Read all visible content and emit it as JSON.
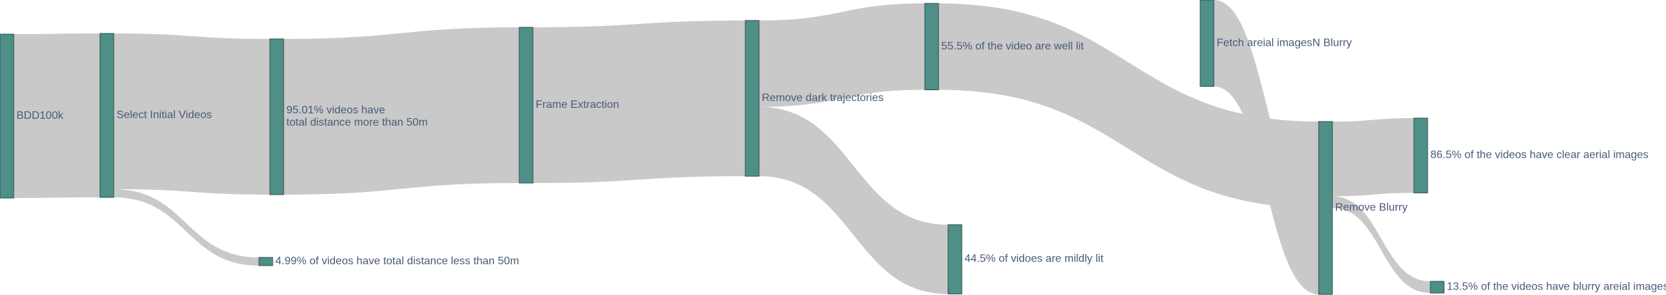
{
  "chart_data": {
    "type": "sankey",
    "title": "",
    "nodes": [
      {
        "id": "bdd",
        "label": [
          "BDD100k"
        ]
      },
      {
        "id": "select",
        "label": [
          "Select Initial Videos"
        ]
      },
      {
        "id": "dist_more",
        "label": [
          "95.01% videos have",
          "total distance more than 50m"
        ]
      },
      {
        "id": "dist_less",
        "label": [
          "4.99% of videos have total distance less than 50m"
        ]
      },
      {
        "id": "frame",
        "label": [
          "Frame Extraction"
        ]
      },
      {
        "id": "dark",
        "label": [
          "Remove dark trajectories"
        ]
      },
      {
        "id": "well_lit",
        "label": [
          "55.5% of the video are well lit"
        ]
      },
      {
        "id": "mild",
        "label": [
          "44.5% of vidoes are mildly lit"
        ]
      },
      {
        "id": "fetch",
        "label": [
          "Fetch areial imagesN Blurry"
        ]
      },
      {
        "id": "blurry",
        "label": [
          "Remove Blurry"
        ]
      },
      {
        "id": "clear",
        "label": [
          "86.5% of the videos have clear aerial images"
        ]
      },
      {
        "id": "blur_imgs",
        "label": [
          "13.5% of the videos have blurry areial images"
        ]
      }
    ],
    "links": [
      {
        "source": "bdd",
        "target": "select",
        "value": 100
      },
      {
        "source": "select",
        "target": "dist_more",
        "value": 95.01
      },
      {
        "source": "select",
        "target": "dist_less",
        "value": 4.99
      },
      {
        "source": "dist_more",
        "target": "frame",
        "value": 95.01
      },
      {
        "source": "frame",
        "target": "dark",
        "value": 95.01
      },
      {
        "source": "dark",
        "target": "well_lit",
        "value": 52.73
      },
      {
        "source": "dark",
        "target": "mild",
        "value": 42.28
      },
      {
        "source": "well_lit",
        "target": "blurry",
        "value": 52.73
      },
      {
        "source": "fetch",
        "target": "blurry",
        "value": 52.73
      },
      {
        "source": "blurry",
        "target": "clear",
        "value": 45.61
      },
      {
        "source": "blurry",
        "target": "blur_imgs",
        "value": 7.12
      }
    ]
  }
}
